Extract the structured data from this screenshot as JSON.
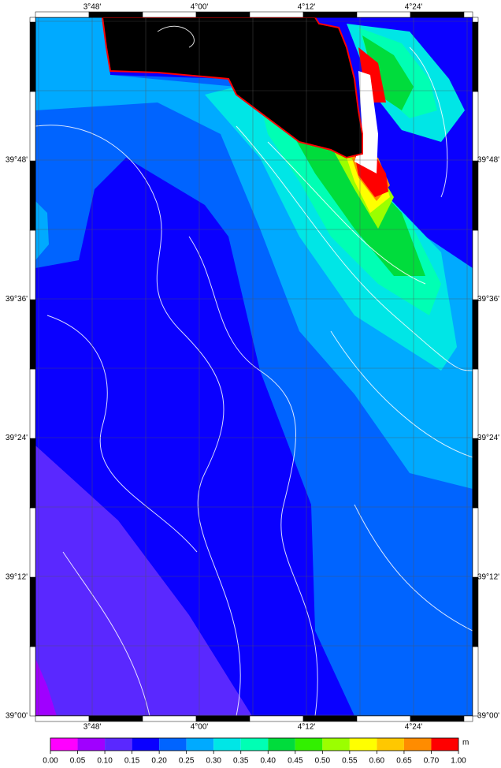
{
  "map": {
    "top_labels": [
      "3°48'",
      "4°00'",
      "4°12'",
      "4°24'"
    ],
    "bottom_labels": [
      "3°48'",
      "4°00'",
      "4°12'",
      "4°24'"
    ],
    "left_labels": [
      "39°48'",
      "39°36'",
      "39°24'",
      "39°12'",
      "39°00'"
    ],
    "right_labels": [
      "39°48'",
      "39°36'",
      "39°24'",
      "39°12'",
      "39°00'"
    ],
    "colorbar": {
      "unit": "m",
      "ticks": [
        {
          "value": 0,
          "label": "0.00"
        },
        {
          "value": 0.05,
          "label": "0.05"
        },
        {
          "value": 0.1,
          "label": "0.10"
        },
        {
          "value": 0.15,
          "label": "0.15"
        },
        {
          "value": 0.2,
          "label": "0.20"
        },
        {
          "value": 0.25,
          "label": "0.25"
        },
        {
          "value": 0.3,
          "label": "0.30"
        },
        {
          "value": 0.35,
          "label": "0.35"
        },
        {
          "value": 0.4,
          "label": "0.40"
        },
        {
          "value": 0.45,
          "label": "0.45"
        },
        {
          "value": 0.5,
          "label": "0.50"
        },
        {
          "value": 0.55,
          "label": "0.55"
        },
        {
          "value": 0.6,
          "label": "0.60"
        },
        {
          "value": 0.65,
          "label": "0.65"
        },
        {
          "value": 0.7,
          "label": "0.70"
        },
        {
          "value": 1,
          "label": "1.00"
        }
      ],
      "colors": [
        "#ff00ff",
        "#a000ff",
        "#5a28ff",
        "#0a00ff",
        "#0064ff",
        "#00aaff",
        "#00e6e6",
        "#00ffb4",
        "#00dc3c",
        "#32f000",
        "#9bff00",
        "#ffff00",
        "#ffc800",
        "#ff8c00",
        "#ff0000"
      ]
    }
  }
}
